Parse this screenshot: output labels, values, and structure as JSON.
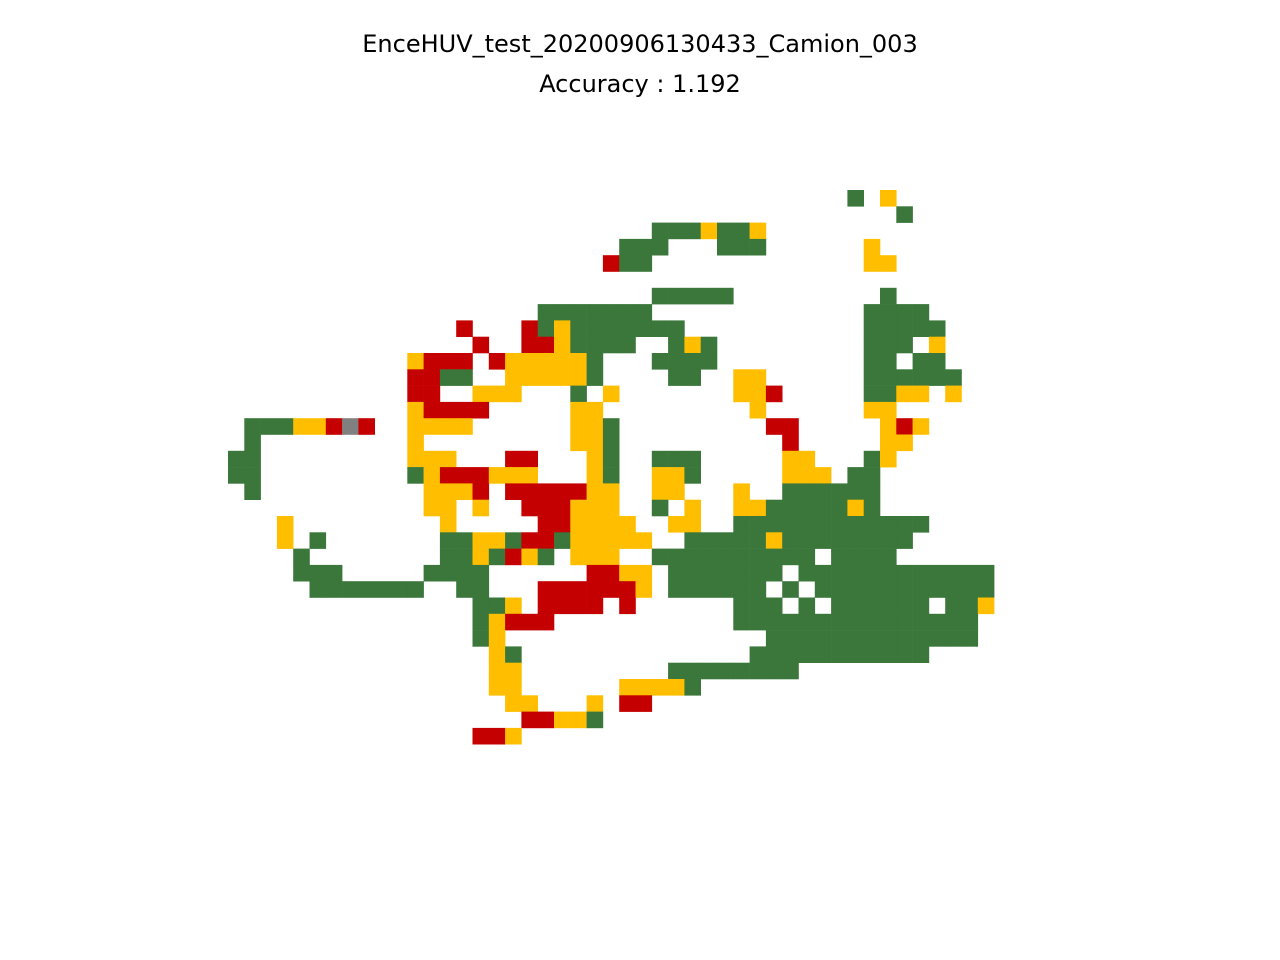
{
  "title": "EnceHUV_test_20200906130433_Camion_003",
  "subtitle": "Accuracy : 1.192",
  "chart_data": {
    "type": "heatmap",
    "title": "EnceHUV_test_20200906130433_Camion_003",
    "subtitle": "Accuracy : 1.192",
    "axes_visible": false,
    "grid": false,
    "cols": 47,
    "rows": 38,
    "palette": {
      "G": "#3b773b",
      "Y": "#ffbf00",
      "R": "#c40000",
      "X": "#808080"
    },
    "cells": [
      "",
      "",
      "",
      "",
      "",
      "",
      "",
      "",
      "",
      "",
      "",
      "",
      "",
      "",
      "",
      "",
      "",
      "",
      "",
      "",
      "",
      "",
      "",
      "",
      "",
      "",
      "",
      "",
      "",
      "",
      "",
      "",
      "",
      "",
      "",
      "",
      "",
      ""
    ]
  }
}
